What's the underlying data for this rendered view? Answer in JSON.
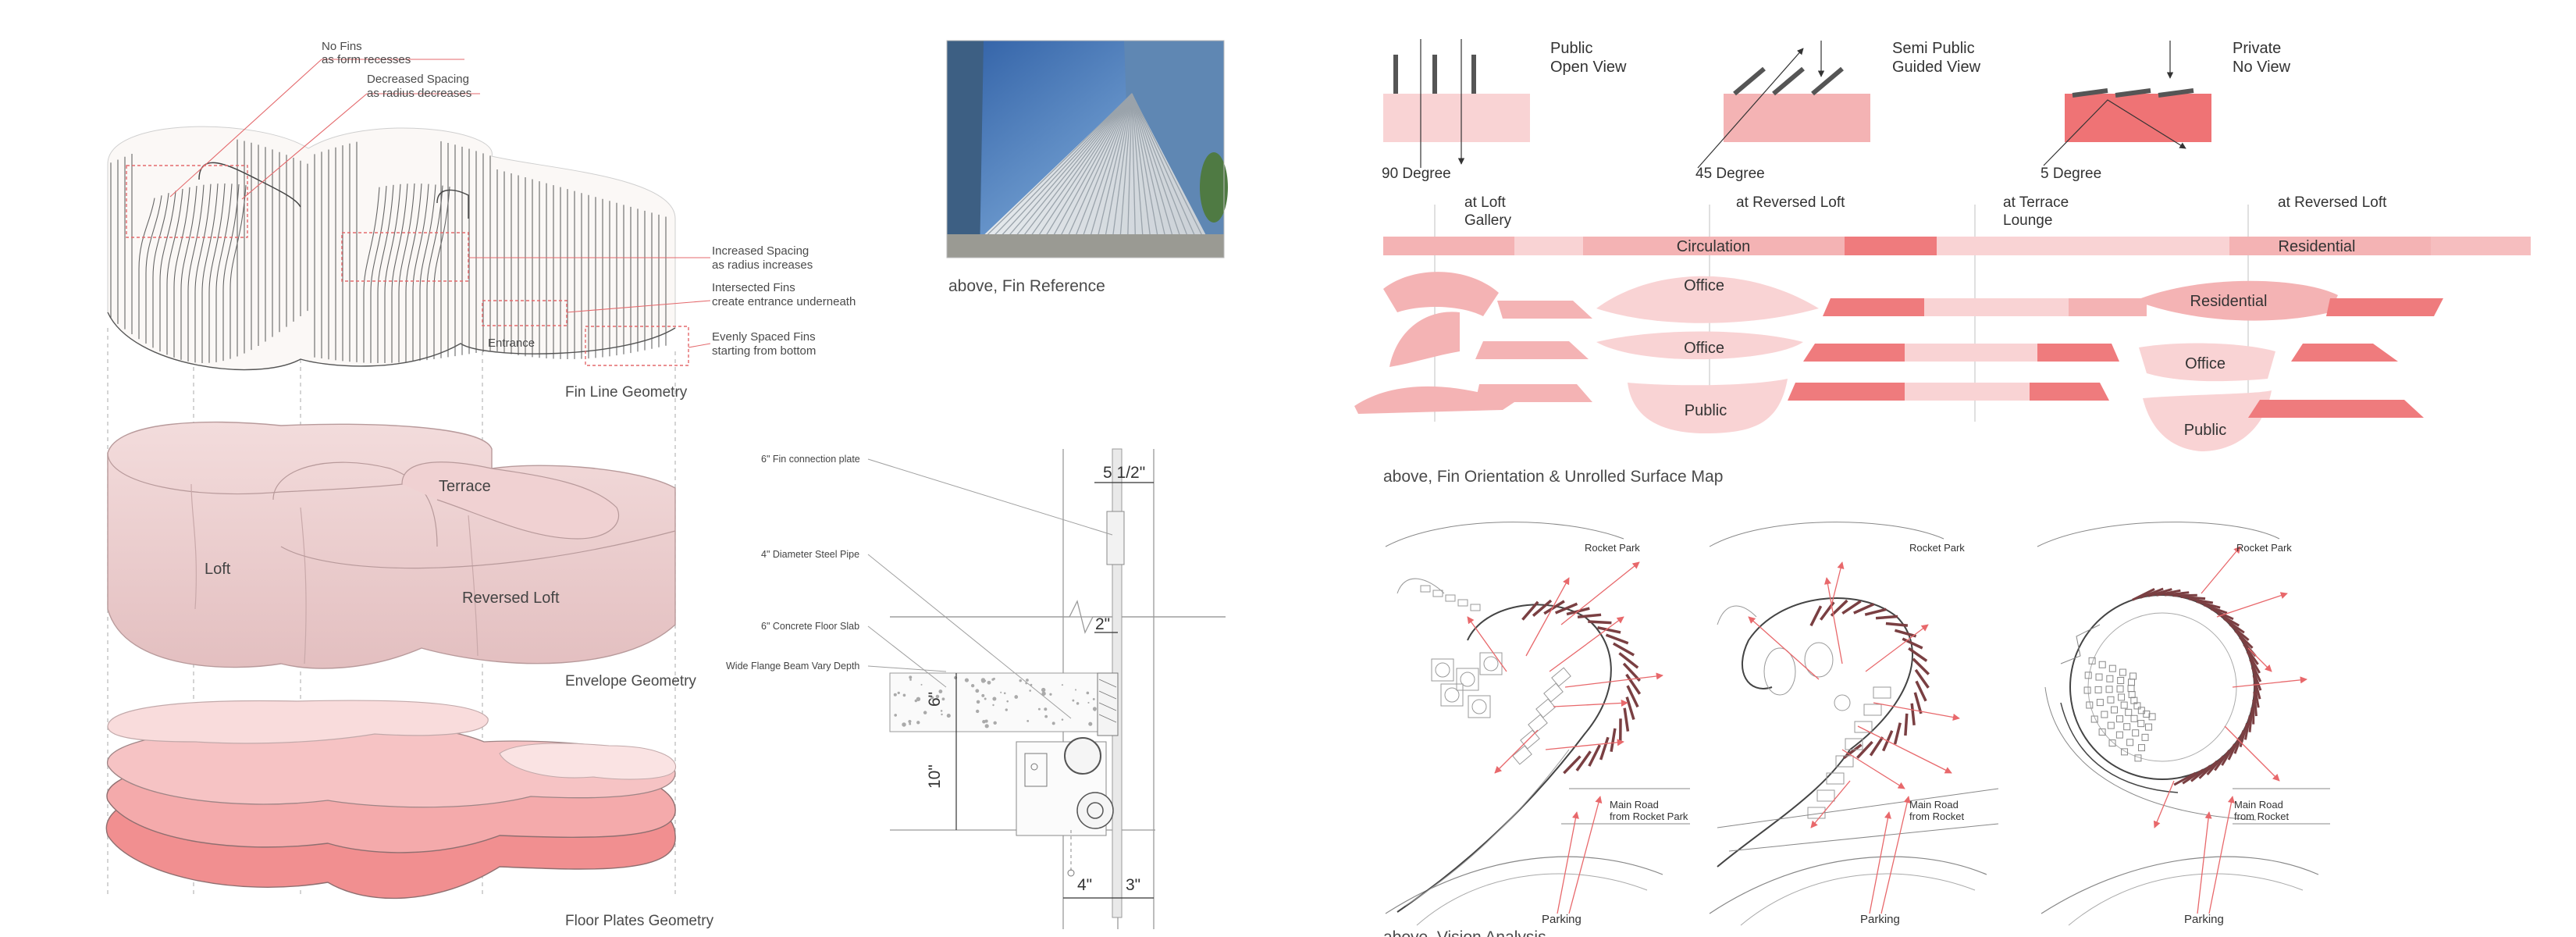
{
  "colors": {
    "accent": "#e8686b",
    "pink_light": "#f8d3d4",
    "pink_mid": "#f3b1b2",
    "pink_strong": "#ef7b7d",
    "line_dark": "#555555",
    "line_grey": "#9a9a9a",
    "annotation": "#e46a6d"
  },
  "axon": {
    "fin_annotations": [
      "No Fins",
      "as form recesses",
      "Decreased Spacing",
      "as radius decreases",
      "Increased Spacing",
      "as radius increases",
      "Intersected Fins",
      "create entrance underneath",
      "Evenly Spaced Fins",
      "starting from bottom"
    ],
    "entrance": "Entrance",
    "fin_title": "Fin Line Geometry",
    "terrace": "Terrace",
    "loft": "Loft",
    "reversed_loft": "Reversed Loft",
    "envelope_title": "Envelope Geometry",
    "floor_title": "Floor Plates Geometry"
  },
  "reference": {
    "caption": "above, Fin Reference",
    "photo_icon": "photo-icon"
  },
  "detail": {
    "labels": [
      "6\" Fin connection plate",
      "4\" Diameter Steel Pipe",
      "6\" Concrete Floor Slab",
      "Wide Flange Beam Vary Depth"
    ],
    "dims": [
      "5 1/2\"",
      "2\"",
      "6\"",
      "10\"",
      "4\"",
      "3\""
    ]
  },
  "orientation": {
    "types": [
      {
        "title": "Public",
        "subtitle": "Open View",
        "angle": "90 Degree",
        "fill": "#f9d3d4"
      },
      {
        "title": "Semi Public",
        "subtitle": "Guided View",
        "angle": "45 Degree",
        "fill": "#f4b3b4"
      },
      {
        "title": "Private",
        "subtitle": "No View",
        "angle": "5 Degree",
        "fill": "#ef7375"
      }
    ],
    "bar_labels": [
      {
        "line1": "at Loft",
        "line2": "Gallery"
      },
      {
        "line1": "at Reversed Loft",
        "line2": ""
      },
      {
        "line1": "at Terrace",
        "line2": "Lounge"
      },
      {
        "line1": "at Reversed Loft",
        "line2": ""
      }
    ],
    "bar_texts": [
      "Circulation",
      "Residential"
    ],
    "zones": [
      "Office",
      "Office",
      "Public",
      "Residential",
      "Office",
      "Public"
    ],
    "caption": "above, Fin Orientation & Unrolled Surface Map"
  },
  "plans": [
    {
      "park": "Rocket Park",
      "road_line1": "Main Road",
      "road_line2": "from Rocket Park",
      "parking": "Parking"
    },
    {
      "park": "Rocket Park",
      "road_line1": "Main Road",
      "road_line2": "from Rocket",
      "parking": "Parking"
    },
    {
      "park": "Rocket Park",
      "road_line1": "Main Road",
      "road_line2": "from Rocket",
      "parking": "Parking"
    }
  ],
  "plans_caption": "above, Vision Analysis"
}
